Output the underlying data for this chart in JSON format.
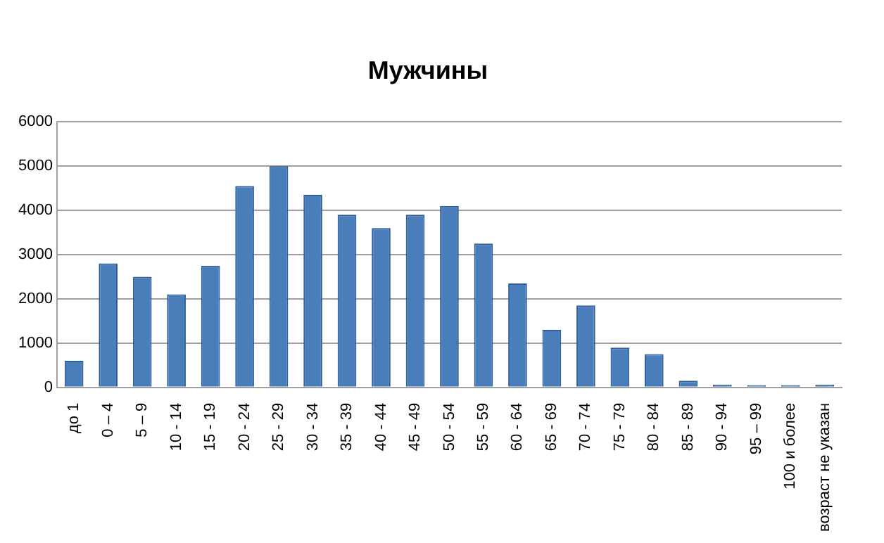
{
  "chart_data": {
    "type": "bar",
    "title": "Мужчины",
    "categories": [
      "до 1",
      "0 – 4",
      "5 – 9",
      "10 - 14",
      "15 - 19",
      "20 - 24",
      "25 - 29",
      "30 - 34",
      "35 - 39",
      "40 - 44",
      "45 - 49",
      "50 - 54",
      "55 - 59",
      "60 - 64",
      "65 - 69",
      "70 - 74",
      "75 - 79",
      "80 - 84",
      "85 - 89",
      "90 - 94",
      "95 – 99",
      "100 и более",
      "возраст не указан"
    ],
    "values": [
      600,
      2800,
      2500,
      2100,
      2750,
      4550,
      5000,
      4350,
      3900,
      3600,
      3900,
      4100,
      3250,
      2350,
      1300,
      1850,
      900,
      750,
      150,
      60,
      50,
      50,
      60
    ],
    "color": "#4a7ebb",
    "ylim": [
      0,
      6000
    ],
    "yticks": [
      0,
      1000,
      2000,
      3000,
      4000,
      5000,
      6000
    ],
    "grid": "y"
  }
}
